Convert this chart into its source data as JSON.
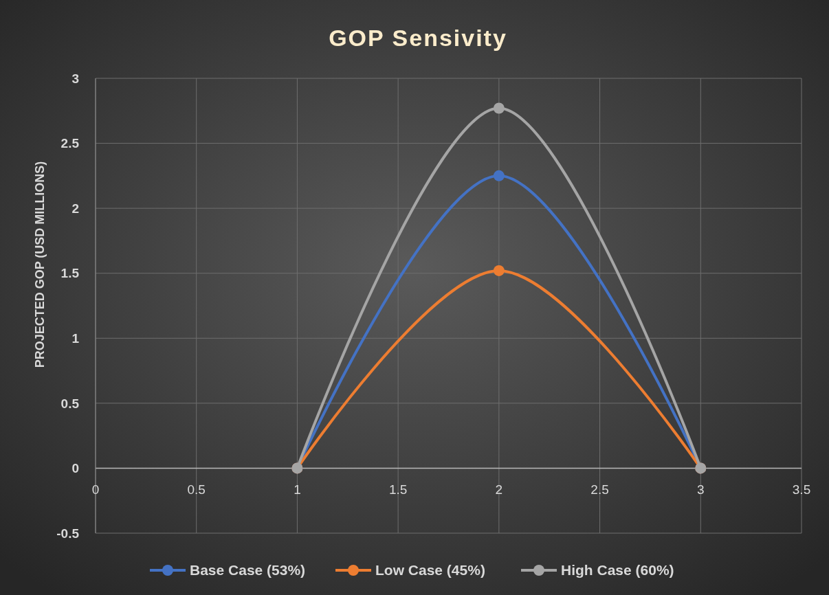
{
  "chart_data": {
    "type": "line",
    "title": "GOP Sensivity",
    "ylabel": "PROJECTED GOP (USD MILLIONS)",
    "x": [
      1,
      2,
      3
    ],
    "series": [
      {
        "name": "Base Case (53%)",
        "color": "#4472c4",
        "values": [
          0,
          2.25,
          0
        ]
      },
      {
        "name": "Low Case (45%)",
        "color": "#ed7d31",
        "values": [
          0,
          1.52,
          0
        ]
      },
      {
        "name": "High Case (60%)",
        "color": "#a5a5a5",
        "values": [
          0,
          2.77,
          0
        ]
      }
    ],
    "xlim": [
      0,
      3.5
    ],
    "xticks": [
      0,
      0.5,
      1,
      1.5,
      2,
      2.5,
      3,
      3.5
    ],
    "ylim": [
      -0.5,
      3
    ],
    "yticks": [
      -0.5,
      0,
      0.5,
      1,
      1.5,
      2,
      2.5,
      3
    ],
    "grid": true,
    "legend": "bottom",
    "marker": "circle",
    "line_style": "solid"
  }
}
